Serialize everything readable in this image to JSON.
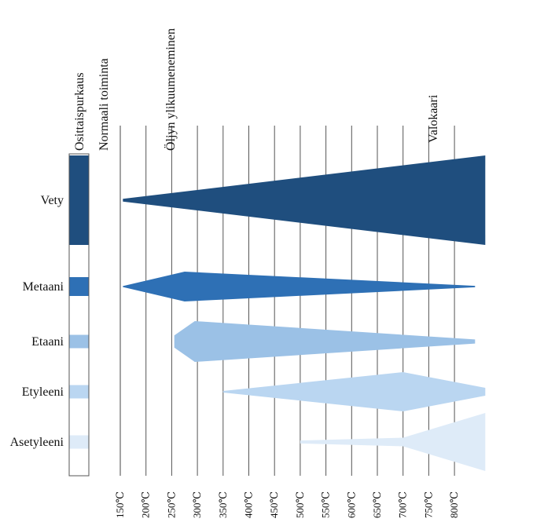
{
  "header_labels": {
    "partial_discharge": "Osittaispurkaus",
    "normal_operation": "Normaali toiminta",
    "oil_overheating": "Öljyn ylikuumeneminen",
    "arc": "Valokaari"
  },
  "temperature_ticks": [
    "150℃",
    "200℃",
    "250℃",
    "300℃",
    "350℃",
    "400℃",
    "450℃",
    "500℃",
    "550℃",
    "600℃",
    "650℃",
    "700℃",
    "750℃",
    "800℃"
  ],
  "temperature_range": [
    150,
    860
  ],
  "gases": [
    {
      "name": "Vety",
      "color": "#1f4e7e",
      "partial_discharge_share": 1.0,
      "profile": [
        [
          155,
          0.03
        ],
        [
          860,
          1.0
        ]
      ]
    },
    {
      "name": "Metaani",
      "color": "#2e70b5",
      "partial_discharge_share": 0.7,
      "profile": [
        [
          155,
          0.03
        ],
        [
          275,
          1.0
        ],
        [
          840,
          0.05
        ]
      ]
    },
    {
      "name": "Etaani",
      "color": "#9bc1e6",
      "partial_discharge_share": 0.5,
      "profile": [
        [
          255,
          0.3
        ],
        [
          295,
          1.0
        ],
        [
          840,
          0.1
        ]
      ]
    },
    {
      "name": "Etyleeni",
      "color": "#bad6f1",
      "partial_discharge_share": 0.5,
      "profile": [
        [
          350,
          0.04
        ],
        [
          700,
          1.0
        ],
        [
          860,
          0.2
        ]
      ]
    },
    {
      "name": "Asetyleeni",
      "color": "#deebf8",
      "partial_discharge_share": 0.5,
      "profile": [
        [
          500,
          0.05
        ],
        [
          700,
          0.15
        ],
        [
          860,
          1.0
        ]
      ]
    }
  ]
}
